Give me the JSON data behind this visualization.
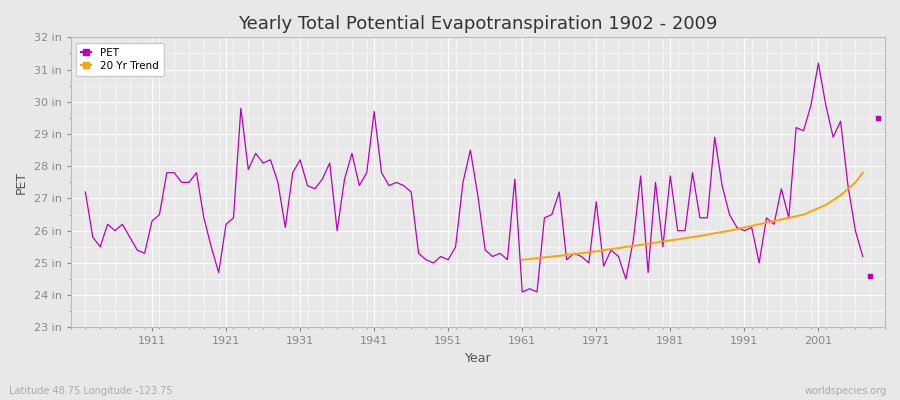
{
  "title": "Yearly Total Potential Evapotranspiration 1902 - 2009",
  "xlabel": "Year",
  "ylabel": "PET",
  "bg_color": "#e8e8e8",
  "plot_bg_color": "#e8e8e8",
  "pet_color": "#bb00bb",
  "trend_color": "#ffa500",
  "ylim": [
    23,
    32
  ],
  "yticks": [
    23,
    24,
    25,
    26,
    27,
    28,
    29,
    30,
    31,
    32
  ],
  "ytick_labels": [
    "23 in",
    "24 in",
    "25 in",
    "26 in",
    "27 in",
    "28 in",
    "29 in",
    "30 in",
    "31 in",
    "32 in"
  ],
  "xticks": [
    1911,
    1921,
    1931,
    1941,
    1951,
    1961,
    1971,
    1981,
    1991,
    2001
  ],
  "xlim": [
    1900,
    2010
  ],
  "years": [
    1902,
    1903,
    1904,
    1905,
    1906,
    1907,
    1908,
    1909,
    1910,
    1911,
    1912,
    1913,
    1914,
    1915,
    1916,
    1917,
    1918,
    1919,
    1920,
    1921,
    1922,
    1923,
    1924,
    1925,
    1926,
    1927,
    1928,
    1929,
    1930,
    1931,
    1932,
    1933,
    1934,
    1935,
    1936,
    1937,
    1938,
    1939,
    1940,
    1941,
    1942,
    1943,
    1944,
    1945,
    1946,
    1947,
    1948,
    1949,
    1950,
    1951,
    1952,
    1953,
    1954,
    1955,
    1956,
    1957,
    1958,
    1959,
    1960,
    1961,
    1962,
    1963,
    1964,
    1965,
    1966,
    1967,
    1968,
    1969,
    1970,
    1971,
    1972,
    1973,
    1974,
    1975,
    1976,
    1977,
    1978,
    1979,
    1980,
    1981,
    1982,
    1983,
    1984,
    1985,
    1986,
    1987,
    1988,
    1989,
    1990,
    1991,
    1992,
    1993,
    1994,
    1995,
    1996,
    1997,
    1998,
    1999,
    2000,
    2001,
    2002,
    2003,
    2004,
    2005,
    2006,
    2007
  ],
  "pet": [
    27.2,
    25.8,
    25.5,
    26.2,
    26.0,
    26.2,
    25.8,
    25.4,
    25.3,
    26.3,
    26.5,
    27.8,
    27.8,
    27.5,
    27.5,
    27.8,
    26.4,
    25.5,
    24.7,
    26.2,
    26.4,
    29.8,
    27.9,
    28.4,
    28.1,
    28.2,
    27.5,
    26.1,
    27.8,
    28.2,
    27.4,
    27.3,
    27.6,
    28.1,
    26.0,
    27.6,
    28.4,
    27.4,
    27.8,
    29.7,
    27.8,
    27.4,
    27.5,
    27.4,
    27.2,
    25.3,
    25.1,
    25.0,
    25.2,
    25.1,
    25.5,
    27.5,
    28.5,
    27.1,
    25.4,
    25.2,
    25.3,
    25.1,
    27.6,
    24.1,
    24.2,
    24.1,
    26.4,
    26.5,
    27.2,
    25.1,
    25.3,
    25.2,
    25.0,
    26.9,
    24.9,
    25.4,
    25.2,
    24.5,
    25.7,
    27.7,
    24.7,
    27.5,
    25.5,
    27.7,
    26.0,
    26.0,
    27.8,
    26.4,
    26.4,
    28.9,
    27.4,
    26.5,
    26.1,
    26.0,
    26.1,
    25.0,
    26.4,
    26.2,
    27.3,
    26.4,
    29.2,
    29.1,
    29.9,
    31.2,
    29.9,
    28.9,
    29.4,
    27.4,
    26.0,
    25.2
  ],
  "trend_years": [
    1961,
    1962,
    1963,
    1964,
    1965,
    1966,
    1967,
    1968,
    1969,
    1970,
    1971,
    1972,
    1973,
    1974,
    1975,
    1976,
    1977,
    1978,
    1979,
    1980,
    1981,
    1982,
    1983,
    1984,
    1985,
    1986,
    1987,
    1988,
    1989,
    1990,
    1991,
    1992,
    1993,
    1994,
    1995,
    1996,
    1997,
    1998,
    1999,
    2000,
    2001,
    2002,
    2003,
    2004,
    2005,
    2006,
    2007
  ],
  "trend_values": [
    25.1,
    25.12,
    25.15,
    25.17,
    25.2,
    25.22,
    25.25,
    25.28,
    25.3,
    25.33,
    25.36,
    25.4,
    25.43,
    25.46,
    25.5,
    25.53,
    25.56,
    25.6,
    25.63,
    25.67,
    25.7,
    25.73,
    25.77,
    25.8,
    25.84,
    25.88,
    25.92,
    25.96,
    26.0,
    26.05,
    26.1,
    26.15,
    26.2,
    26.25,
    26.3,
    26.35,
    26.4,
    26.45,
    26.5,
    26.6,
    26.7,
    26.8,
    26.95,
    27.1,
    27.3,
    27.5,
    27.8
  ],
  "outlier_2008_year": 2008,
  "outlier_2008_val": 24.6,
  "outlier_2009_year": 2009,
  "outlier_2009_val": 29.5,
  "watermark": "worldspecies.org",
  "footnote": "Latitude 48.75 Longitude -123.75",
  "legend_labels": [
    "PET",
    "20 Yr Trend"
  ],
  "title_fontsize": 13,
  "axis_label_fontsize": 9,
  "tick_fontsize": 8
}
